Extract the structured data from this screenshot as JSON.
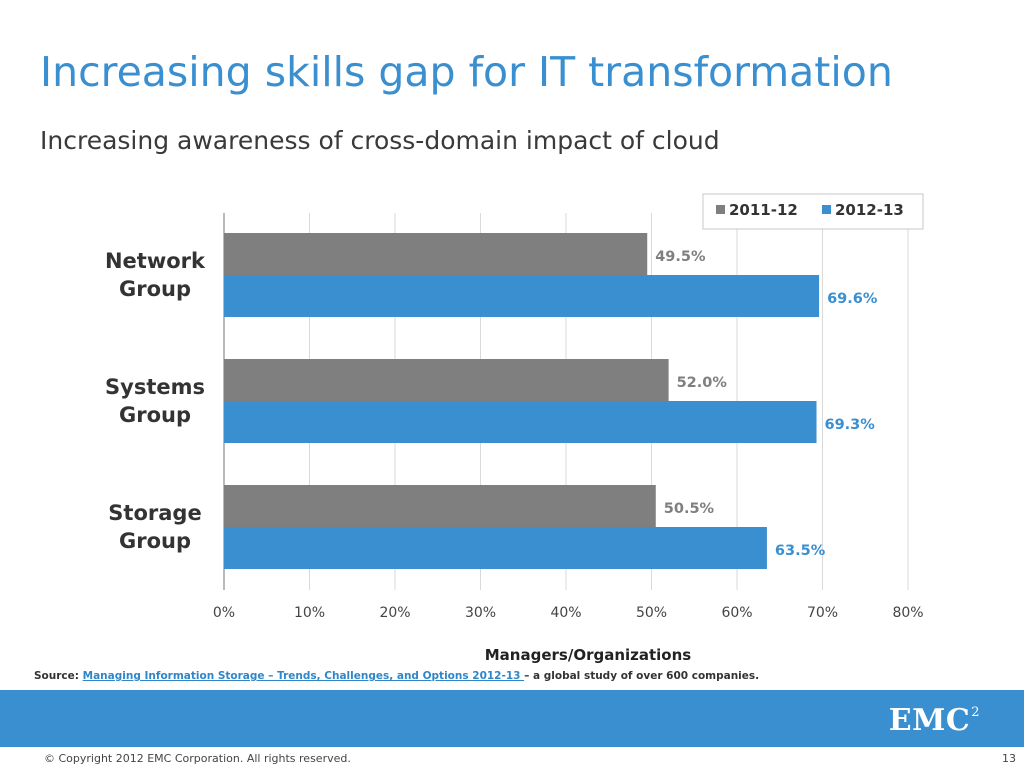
{
  "slide": {
    "title": "Increasing skills gap for IT transformation",
    "subtitle": "Increasing awareness of cross-domain impact of cloud"
  },
  "source": {
    "prefix": "Source:",
    "link_text": "Managing Information Storage – Trends, Challenges, and Options 2012-13 ",
    "suffix": " – a global study of over 600 companies."
  },
  "footer": {
    "logo_text": "EMC",
    "logo_superscript": "2",
    "copyright": "© Copyright 2012 EMC Corporation. All rights reserved.",
    "page_number": "13"
  },
  "colors": {
    "title_blue": "#3a8fd0",
    "series_2011": "#7f7f7f",
    "series_2012": "#3a8fd0",
    "band": "#3a8fd0"
  },
  "chart_data": {
    "type": "bar",
    "orientation": "horizontal",
    "categories": [
      [
        "Network",
        "Group"
      ],
      [
        "Systems",
        "Group"
      ],
      [
        "Storage",
        "Group"
      ]
    ],
    "series": [
      {
        "name": "2011-12",
        "color": "#7f7f7f",
        "values": [
          49.5,
          52.0,
          50.5
        ],
        "labels": [
          "49.5%",
          "52.0%",
          "50.5%"
        ]
      },
      {
        "name": "2012-13",
        "color": "#3a8fd0",
        "values": [
          69.6,
          69.3,
          63.5
        ],
        "labels": [
          "69.6%",
          "69.3%",
          "63.5%"
        ]
      }
    ],
    "xlim": [
      0,
      80
    ],
    "x_ticks": [
      0,
      10,
      20,
      30,
      40,
      50,
      60,
      70,
      80
    ],
    "x_tick_labels": [
      "0%",
      "10%",
      "20%",
      "30%",
      "40%",
      "50%",
      "60%",
      "70%",
      "80%"
    ],
    "xlabel": "Managers/Organizations",
    "grid": true,
    "legend_position": "top-right"
  }
}
